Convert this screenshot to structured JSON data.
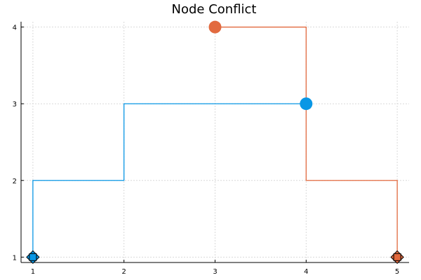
{
  "chart_data": {
    "type": "line",
    "title": "Node Conflict",
    "xlabel": "",
    "ylabel": "",
    "xlim": [
      0.87,
      5.13
    ],
    "ylim": [
      0.93,
      4.07
    ],
    "xticks": [
      1,
      2,
      3,
      4,
      5
    ],
    "yticks": [
      1,
      2,
      3,
      4
    ],
    "grid": true,
    "series": [
      {
        "color": "#0997e5",
        "step_points": [
          [
            1,
            1
          ],
          [
            1,
            2
          ],
          [
            2,
            2
          ],
          [
            2,
            3
          ],
          [
            4,
            3
          ]
        ],
        "start_marker": {
          "shape": "square",
          "x": 1,
          "y": 1
        },
        "end_marker": {
          "shape": "circle",
          "x": 4,
          "y": 3
        }
      },
      {
        "color": "#e26a3f",
        "step_points": [
          [
            3,
            4
          ],
          [
            4,
            4
          ],
          [
            4,
            2
          ],
          [
            5,
            2
          ],
          [
            5,
            1
          ]
        ],
        "start_marker": {
          "shape": "circle",
          "x": 3,
          "y": 4
        },
        "end_marker": {
          "shape": "square",
          "x": 5,
          "y": 1
        }
      }
    ],
    "diamond_markers": [
      {
        "x": 1,
        "y": 1,
        "color": "#0997e5"
      },
      {
        "x": 5,
        "y": 1,
        "color": "#e26a3f"
      }
    ]
  }
}
